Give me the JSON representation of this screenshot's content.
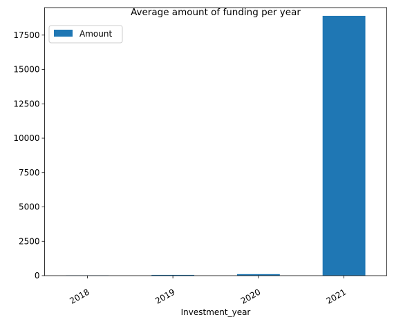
{
  "chart_data": {
    "type": "bar",
    "title": "Average amount of funding per year",
    "xlabel": "Investment_year",
    "ylabel": "",
    "categories": [
      "2018",
      "2019",
      "2020",
      "2021"
    ],
    "series": [
      {
        "name": "Amount",
        "values": [
          20,
          55,
          110,
          18900
        ],
        "color": "#1f77b4"
      }
    ],
    "ylim": [
      0,
      19500
    ],
    "yticks": [
      0,
      2500,
      5000,
      7500,
      10000,
      12500,
      15000,
      17500
    ],
    "ytick_labels": [
      "0",
      "2500",
      "5000",
      "7500",
      "10000",
      "12500",
      "15000",
      "17500"
    ],
    "xtick_rotation_deg": 30,
    "grid": false,
    "legend": {
      "position": "top-left"
    }
  }
}
